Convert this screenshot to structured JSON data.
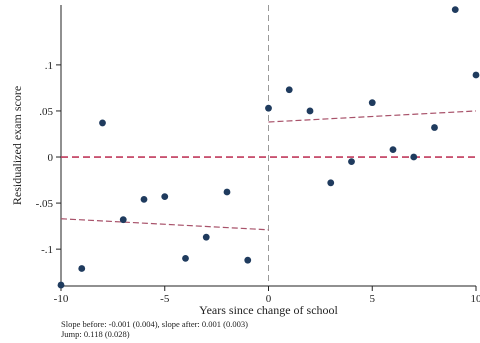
{
  "chart_data": {
    "type": "scatter",
    "title": "",
    "xlabel": "Years since change of school",
    "ylabel": "Residualized exam score",
    "xlim": [
      -10,
      10
    ],
    "ylim": [
      -0.14,
      0.165
    ],
    "x_ticks": [
      {
        "value": -10,
        "label": "-10"
      },
      {
        "value": -5,
        "label": "-5"
      },
      {
        "value": 0,
        "label": "0"
      },
      {
        "value": 5,
        "label": "5"
      },
      {
        "value": 10,
        "label": "10"
      }
    ],
    "y_ticks": [
      {
        "value": 0.1,
        "label": ".1"
      },
      {
        "value": 0.05,
        "label": ".05"
      },
      {
        "value": 0,
        "label": "0"
      },
      {
        "value": -0.05,
        "label": "-.05"
      },
      {
        "value": -0.1,
        "label": "-.1"
      }
    ],
    "points": [
      {
        "x": -10,
        "y": -0.139
      },
      {
        "x": -9,
        "y": -0.121
      },
      {
        "x": -8,
        "y": 0.037
      },
      {
        "x": -7,
        "y": -0.068
      },
      {
        "x": -6,
        "y": -0.046
      },
      {
        "x": -5,
        "y": -0.043
      },
      {
        "x": -4,
        "y": -0.11
      },
      {
        "x": -3,
        "y": -0.087
      },
      {
        "x": -2,
        "y": -0.038
      },
      {
        "x": -1,
        "y": -0.112
      },
      {
        "x": 0,
        "y": 0.053
      },
      {
        "x": 1,
        "y": 0.073
      },
      {
        "x": 2,
        "y": 0.05
      },
      {
        "x": 3,
        "y": -0.028
      },
      {
        "x": 4,
        "y": -0.005
      },
      {
        "x": 5,
        "y": 0.059
      },
      {
        "x": 6,
        "y": 0.008
      },
      {
        "x": 7,
        "y": 0.0
      },
      {
        "x": 8,
        "y": 0.032
      },
      {
        "x": 9,
        "y": 0.16
      },
      {
        "x": 10,
        "y": 0.089
      }
    ],
    "fit_lines": [
      {
        "x": [
          -10,
          0
        ],
        "y": [
          -0.067,
          -0.079
        ]
      },
      {
        "x": [
          0,
          10
        ],
        "y": [
          0.038,
          0.05
        ]
      }
    ],
    "reference_lines": {
      "horizontal_y": 0,
      "vertical_x": 0
    },
    "colors": {
      "points": "#1f3b5e",
      "fit": "#a8526a",
      "zero_line": "#c03a5c",
      "vline": "#999999"
    },
    "annotations": [
      "Slope before: -0.001 (0.004), slope after: 0.001 (0.003)",
      "Jump: 0.118 (0.028)"
    ]
  }
}
